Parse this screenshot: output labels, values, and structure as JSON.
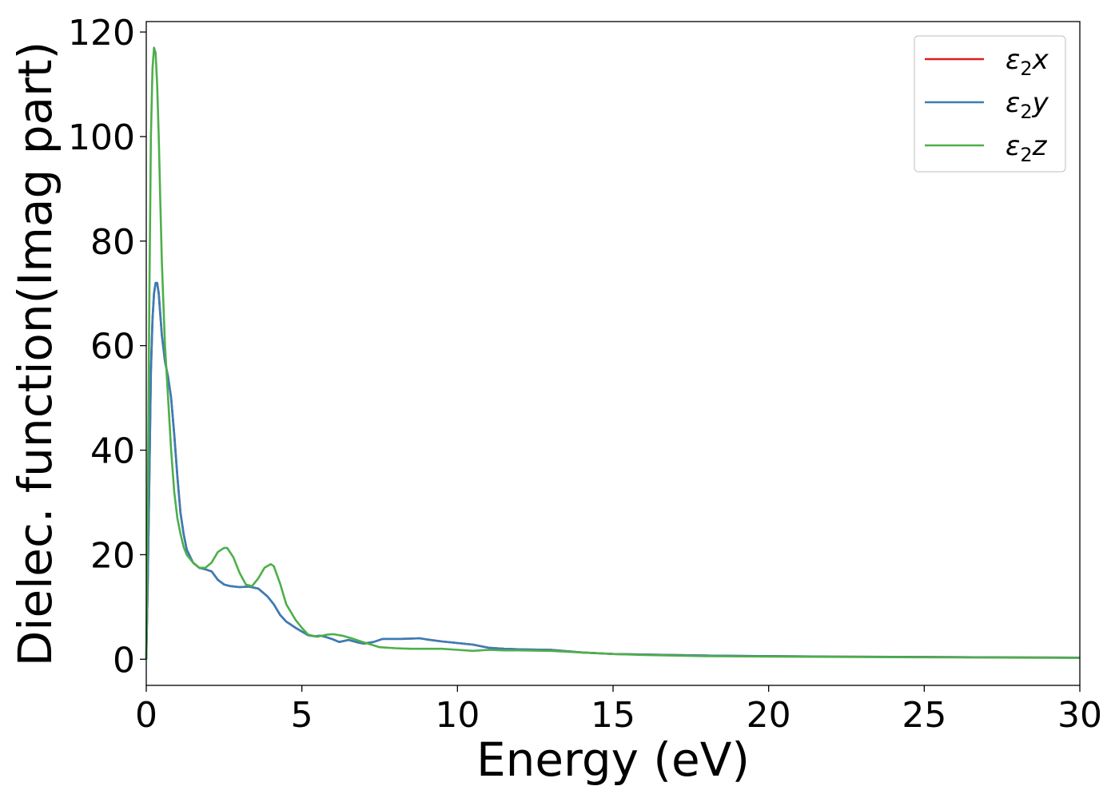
{
  "chart_data": {
    "type": "line",
    "title": "",
    "xlabel": "Energy (eV)",
    "ylabel": "Dielec. function(Imag part)",
    "xlim": [
      0,
      30
    ],
    "ylim": [
      -5,
      122
    ],
    "xticks": [
      0,
      5,
      10,
      15,
      20,
      25,
      30
    ],
    "yticks": [
      0,
      20,
      40,
      60,
      80,
      100,
      120
    ],
    "grid": false,
    "legend": {
      "position": "top-right"
    },
    "series": [
      {
        "name": "ε₂x",
        "legend_base": "ε",
        "legend_sub": "2",
        "legend_suffix": "x",
        "color": "#e41a1c",
        "x": [
          0,
          0.05,
          0.1,
          0.15,
          0.2,
          0.25,
          0.3,
          0.35,
          0.4,
          0.5,
          0.6,
          0.7,
          0.8,
          0.9,
          1.0,
          1.1,
          1.2,
          1.3,
          1.5,
          1.7,
          1.9,
          2.1,
          2.3,
          2.5,
          2.7,
          3.0,
          3.3,
          3.6,
          3.9,
          4.1,
          4.3,
          4.5,
          4.8,
          5.0,
          5.2,
          5.4,
          5.6,
          5.8,
          6.0,
          6.2,
          6.5,
          6.8,
          7.0,
          7.3,
          7.6,
          7.8,
          8.2,
          8.8,
          9.0,
          9.5,
          10.0,
          10.5,
          11.0,
          11.5,
          12.0,
          13.0,
          14.0,
          15.0,
          16.0,
          17.0,
          18.0,
          20.0,
          22.0,
          24.0,
          26.0,
          28.0,
          30.0
        ],
        "values": [
          0,
          15,
          35,
          55,
          65,
          70,
          72,
          72,
          70,
          62,
          57,
          54,
          50,
          43,
          35,
          28,
          24,
          21,
          18.5,
          17.5,
          17.2,
          16.8,
          15.2,
          14.3,
          14.0,
          13.8,
          13.9,
          13.5,
          12.0,
          10.5,
          8.5,
          7.2,
          6.0,
          5.3,
          4.6,
          4.4,
          4.5,
          4.2,
          3.8,
          3.3,
          3.7,
          3.2,
          3.0,
          3.3,
          3.9,
          3.9,
          3.9,
          4.0,
          3.8,
          3.4,
          3.1,
          2.8,
          2.2,
          2.0,
          1.9,
          1.8,
          1.3,
          1.0,
          0.9,
          0.8,
          0.7,
          0.6,
          0.5,
          0.45,
          0.4,
          0.35,
          0.3
        ]
      },
      {
        "name": "ε₂y",
        "legend_base": "ε",
        "legend_sub": "2",
        "legend_suffix": "y",
        "color": "#377eb8",
        "x": [
          0,
          0.05,
          0.1,
          0.15,
          0.2,
          0.25,
          0.3,
          0.35,
          0.4,
          0.5,
          0.6,
          0.7,
          0.8,
          0.9,
          1.0,
          1.1,
          1.2,
          1.3,
          1.5,
          1.7,
          1.9,
          2.1,
          2.3,
          2.5,
          2.7,
          3.0,
          3.3,
          3.6,
          3.9,
          4.1,
          4.3,
          4.5,
          4.8,
          5.0,
          5.2,
          5.4,
          5.6,
          5.8,
          6.0,
          6.2,
          6.5,
          6.8,
          7.0,
          7.3,
          7.6,
          7.8,
          8.2,
          8.8,
          9.0,
          9.5,
          10.0,
          10.5,
          11.0,
          11.5,
          12.0,
          13.0,
          14.0,
          15.0,
          16.0,
          17.0,
          18.0,
          20.0,
          22.0,
          24.0,
          26.0,
          28.0,
          30.0
        ],
        "values": [
          0,
          15,
          35,
          55,
          65,
          70,
          72,
          72,
          70,
          62,
          57,
          54,
          50,
          43,
          35,
          28,
          24,
          21,
          18.5,
          17.5,
          17.2,
          16.8,
          15.2,
          14.3,
          14.0,
          13.8,
          13.9,
          13.5,
          12.0,
          10.5,
          8.5,
          7.2,
          6.0,
          5.3,
          4.6,
          4.4,
          4.5,
          4.2,
          3.8,
          3.3,
          3.7,
          3.2,
          3.0,
          3.3,
          3.9,
          3.9,
          3.9,
          4.0,
          3.8,
          3.4,
          3.1,
          2.8,
          2.2,
          2.0,
          1.9,
          1.8,
          1.3,
          1.0,
          0.9,
          0.8,
          0.7,
          0.6,
          0.5,
          0.45,
          0.4,
          0.35,
          0.3
        ]
      },
      {
        "name": "ε₂z",
        "legend_base": "ε",
        "legend_sub": "2",
        "legend_suffix": "z",
        "color": "#4daf4a",
        "x": [
          0,
          0.05,
          0.1,
          0.15,
          0.2,
          0.25,
          0.3,
          0.35,
          0.4,
          0.45,
          0.5,
          0.6,
          0.7,
          0.8,
          0.9,
          1.0,
          1.1,
          1.2,
          1.3,
          1.5,
          1.7,
          1.9,
          2.1,
          2.3,
          2.5,
          2.6,
          2.8,
          3.0,
          3.2,
          3.4,
          3.6,
          3.8,
          4.0,
          4.1,
          4.3,
          4.5,
          4.8,
          5.0,
          5.2,
          5.5,
          5.8,
          6.0,
          6.3,
          6.6,
          7.0,
          7.5,
          8.0,
          8.5,
          9.0,
          9.5,
          10.0,
          10.5,
          11.0,
          11.5,
          12.0,
          13.0,
          14.0,
          15.0,
          16.0,
          17.0,
          18.0,
          20.0,
          22.0,
          24.0,
          26.0,
          28.0,
          30.0
        ],
        "values": [
          0,
          30,
          70,
          100,
          113,
          117,
          116,
          110,
          100,
          88,
          76,
          60,
          50,
          40,
          32,
          27,
          24,
          21.5,
          20.0,
          18.5,
          17.5,
          17.5,
          18.5,
          20.5,
          21.3,
          21.3,
          19.5,
          16.5,
          14.3,
          14.0,
          15.5,
          17.5,
          18.2,
          17.8,
          14.5,
          10.5,
          7.5,
          6.0,
          4.7,
          4.3,
          4.7,
          4.8,
          4.5,
          4.0,
          3.2,
          2.3,
          2.1,
          2.0,
          2.0,
          2.0,
          1.8,
          1.6,
          1.8,
          1.7,
          1.7,
          1.6,
          1.3,
          1.0,
          0.8,
          0.7,
          0.6,
          0.5,
          0.45,
          0.4,
          0.35,
          0.3,
          0.25
        ]
      }
    ]
  }
}
